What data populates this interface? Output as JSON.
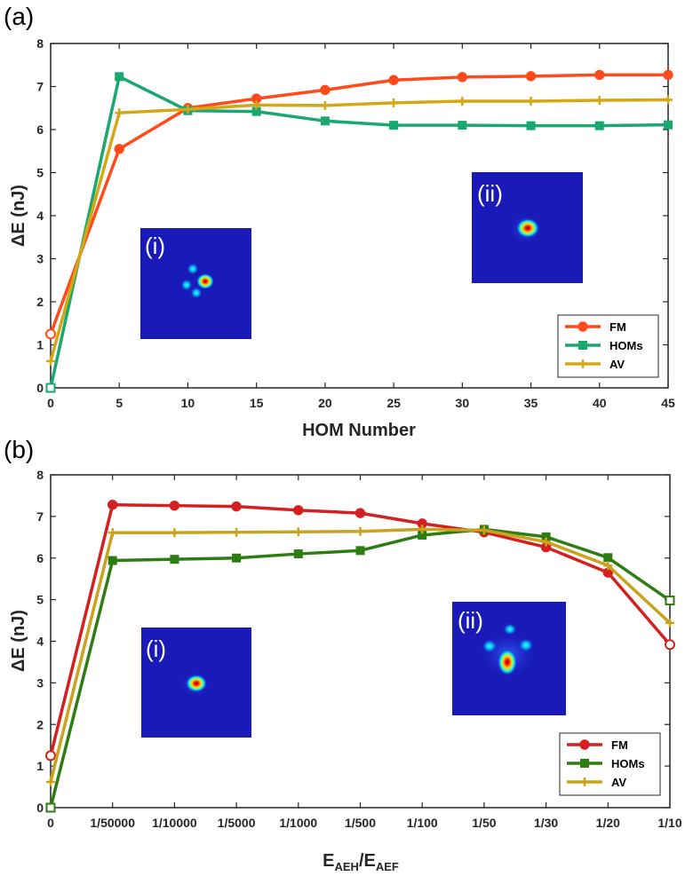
{
  "chart_data": [
    {
      "panel_label": "(a)",
      "type": "line",
      "xlabel": "HOM Number",
      "ylabel": "ΔE (nJ)",
      "x": [
        0,
        5,
        10,
        15,
        20,
        25,
        30,
        35,
        40,
        45
      ],
      "xlim": [
        0,
        45
      ],
      "ylim": [
        0,
        8
      ],
      "x_ticks": [
        "0",
        "5",
        "10",
        "15",
        "20",
        "25",
        "30",
        "35",
        "40",
        "45"
      ],
      "y_ticks": [
        "0",
        "1",
        "2",
        "3",
        "4",
        "5",
        "6",
        "7",
        "8"
      ],
      "series": [
        {
          "name": "FM",
          "color": "#FF4A1C",
          "marker": "circle",
          "values": [
            1.25,
            5.55,
            6.5,
            6.72,
            6.92,
            7.15,
            7.22,
            7.24,
            7.27,
            7.27
          ]
        },
        {
          "name": "HOMs",
          "color": "#18A870",
          "marker": "square",
          "values": [
            0.0,
            7.23,
            6.44,
            6.42,
            6.2,
            6.1,
            6.1,
            6.09,
            6.09,
            6.11
          ]
        },
        {
          "name": "AV",
          "color": "#D4A716",
          "marker": "plus",
          "values": [
            0.62,
            6.39,
            6.47,
            6.57,
            6.56,
            6.62,
            6.66,
            6.66,
            6.68,
            6.69
          ]
        }
      ],
      "legend_position": "bottom-right",
      "insets": [
        {
          "label": "(i)"
        },
        {
          "label": "(ii)"
        }
      ]
    },
    {
      "panel_label": "(b)",
      "type": "line",
      "xlabel": "E_AEH/E_AEF",
      "xlabel_main": "E",
      "xlabel_sub1": "AEH",
      "xlabel_slash": "/E",
      "xlabel_sub2": "AEF",
      "ylabel": "ΔE (nJ)",
      "categories": [
        "0",
        "1/50000",
        "1/10000",
        "1/5000",
        "1/1000",
        "1/500",
        "1/100",
        "1/50",
        "1/30",
        "1/20",
        "1/10"
      ],
      "ylim": [
        0,
        8
      ],
      "y_ticks": [
        "0",
        "1",
        "2",
        "3",
        "4",
        "5",
        "6",
        "7",
        "8"
      ],
      "series": [
        {
          "name": "FM",
          "color": "#D42020",
          "marker": "circle",
          "values": [
            1.25,
            7.28,
            7.26,
            7.24,
            7.15,
            7.08,
            6.83,
            6.62,
            6.26,
            5.65,
            3.92
          ]
        },
        {
          "name": "HOMs",
          "color": "#2E7D12",
          "marker": "square",
          "values": [
            0.0,
            5.94,
            5.97,
            6.0,
            6.1,
            6.18,
            6.55,
            6.69,
            6.51,
            6.01,
            4.98
          ]
        },
        {
          "name": "AV",
          "color": "#C9A21E",
          "marker": "plus",
          "values": [
            0.62,
            6.61,
            6.61,
            6.62,
            6.63,
            6.64,
            6.69,
            6.67,
            6.39,
            5.82,
            4.44
          ]
        }
      ],
      "legend_position": "bottom-right",
      "insets": [
        {
          "label": "(i)"
        },
        {
          "label": "(ii)"
        }
      ]
    }
  ]
}
